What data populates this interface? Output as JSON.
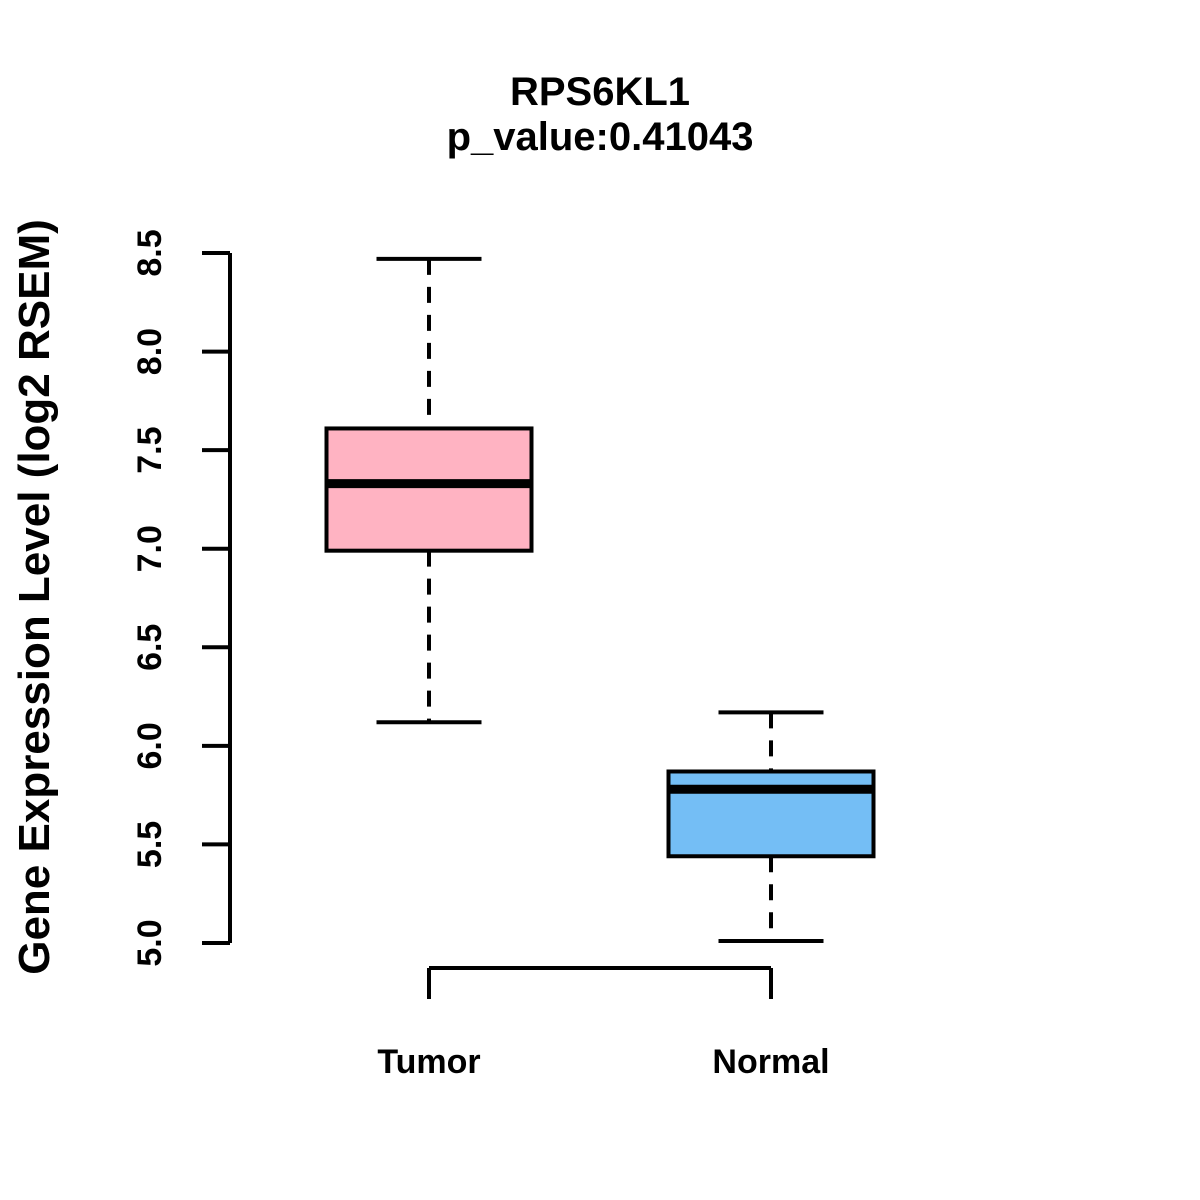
{
  "page": {
    "background_color": "#FFFFFF"
  },
  "chart_data": {
    "type": "boxplot",
    "title": "RPS6KL1",
    "subtitle": "p_value:0.41043",
    "ylabel": "Gene Expression Level (log2 RSEM)",
    "xlabel": "",
    "categories": [
      "Tumor",
      "Normal"
    ],
    "ylim": [
      5.0,
      8.5
    ],
    "ytick_labels": [
      "5.0",
      "5.5",
      "6.0",
      "6.5",
      "7.0",
      "7.5",
      "8.0",
      "8.5"
    ],
    "grid": false,
    "legend": "none",
    "line_color": "#000000",
    "series": [
      {
        "name": "Tumor",
        "fill_color": "#FFB3C2",
        "lower_whisker": 6.12,
        "q1": 6.99,
        "median": 7.33,
        "q3": 7.61,
        "upper_whisker": 8.47
      },
      {
        "name": "Normal",
        "fill_color": "#74BEF5",
        "lower_whisker": 5.01,
        "q1": 5.44,
        "median": 5.78,
        "q3": 5.87,
        "upper_whisker": 6.17
      }
    ]
  }
}
